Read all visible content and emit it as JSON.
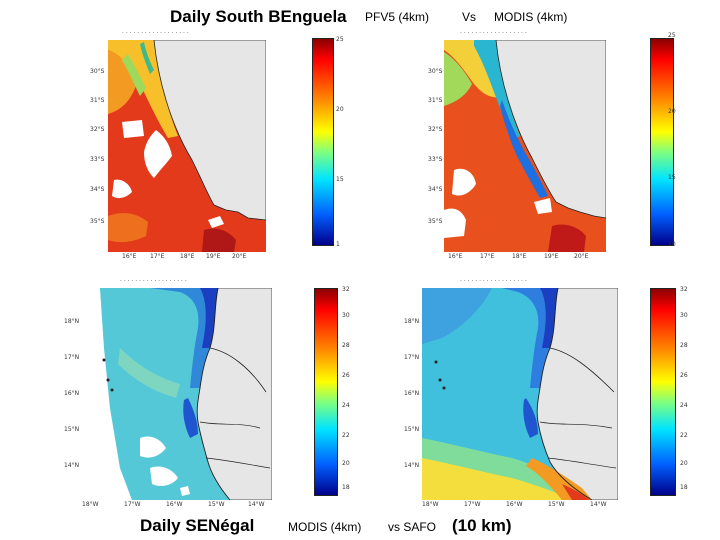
{
  "header": {
    "title_part1": "Daily South BEnguela",
    "title_part2": "PFV5  (4km)",
    "title_part3": "Vs",
    "title_part4": "MODIS  (4km)"
  },
  "footer": {
    "part1": "Daily  SENégal",
    "part2": "MODIS (4km)",
    "part3": "vs SAFO",
    "part4": "(10 km)"
  },
  "panels": {
    "top_left": {
      "colorbar_ticks": [
        "25",
        "20",
        "15",
        "1"
      ],
      "lat_ticks": [
        "30°S",
        "31°S",
        "32°S",
        "33°S",
        "34°S",
        "35°S"
      ],
      "lon_ticks": [
        "16°E",
        "17°E",
        "18°E",
        "19°E",
        "20°E"
      ]
    },
    "top_right": {
      "colorbar_ticks": [
        "25",
        "20",
        "15",
        "10"
      ],
      "lat_ticks": [
        "30°S",
        "31°S",
        "32°S",
        "33°S",
        "34°S",
        "35°S"
      ],
      "lon_ticks": [
        "16°E",
        "17°E",
        "18°E",
        "19°E",
        "20°E"
      ]
    },
    "bottom_left": {
      "colorbar_ticks": [
        "32",
        "30",
        "28",
        "26",
        "24",
        "22",
        "20",
        "18"
      ],
      "lat_ticks": [
        "18°N",
        "17°N",
        "16°N",
        "15°N",
        "14°N"
      ],
      "lon_ticks": [
        "18°W",
        "17°W",
        "16°W",
        "15°W",
        "14°W"
      ]
    },
    "bottom_right": {
      "colorbar_ticks": [
        "32",
        "30",
        "28",
        "26",
        "24",
        "22",
        "20",
        "18"
      ],
      "lat_ticks": [
        "18°N",
        "17°N",
        "16°N",
        "15°N",
        "14°N"
      ],
      "lon_ticks": [
        "18°W",
        "17°W",
        "16°W",
        "15°W",
        "14°W"
      ]
    }
  },
  "colors": {
    "land": "#e6e6e6",
    "coast": "#222222"
  }
}
